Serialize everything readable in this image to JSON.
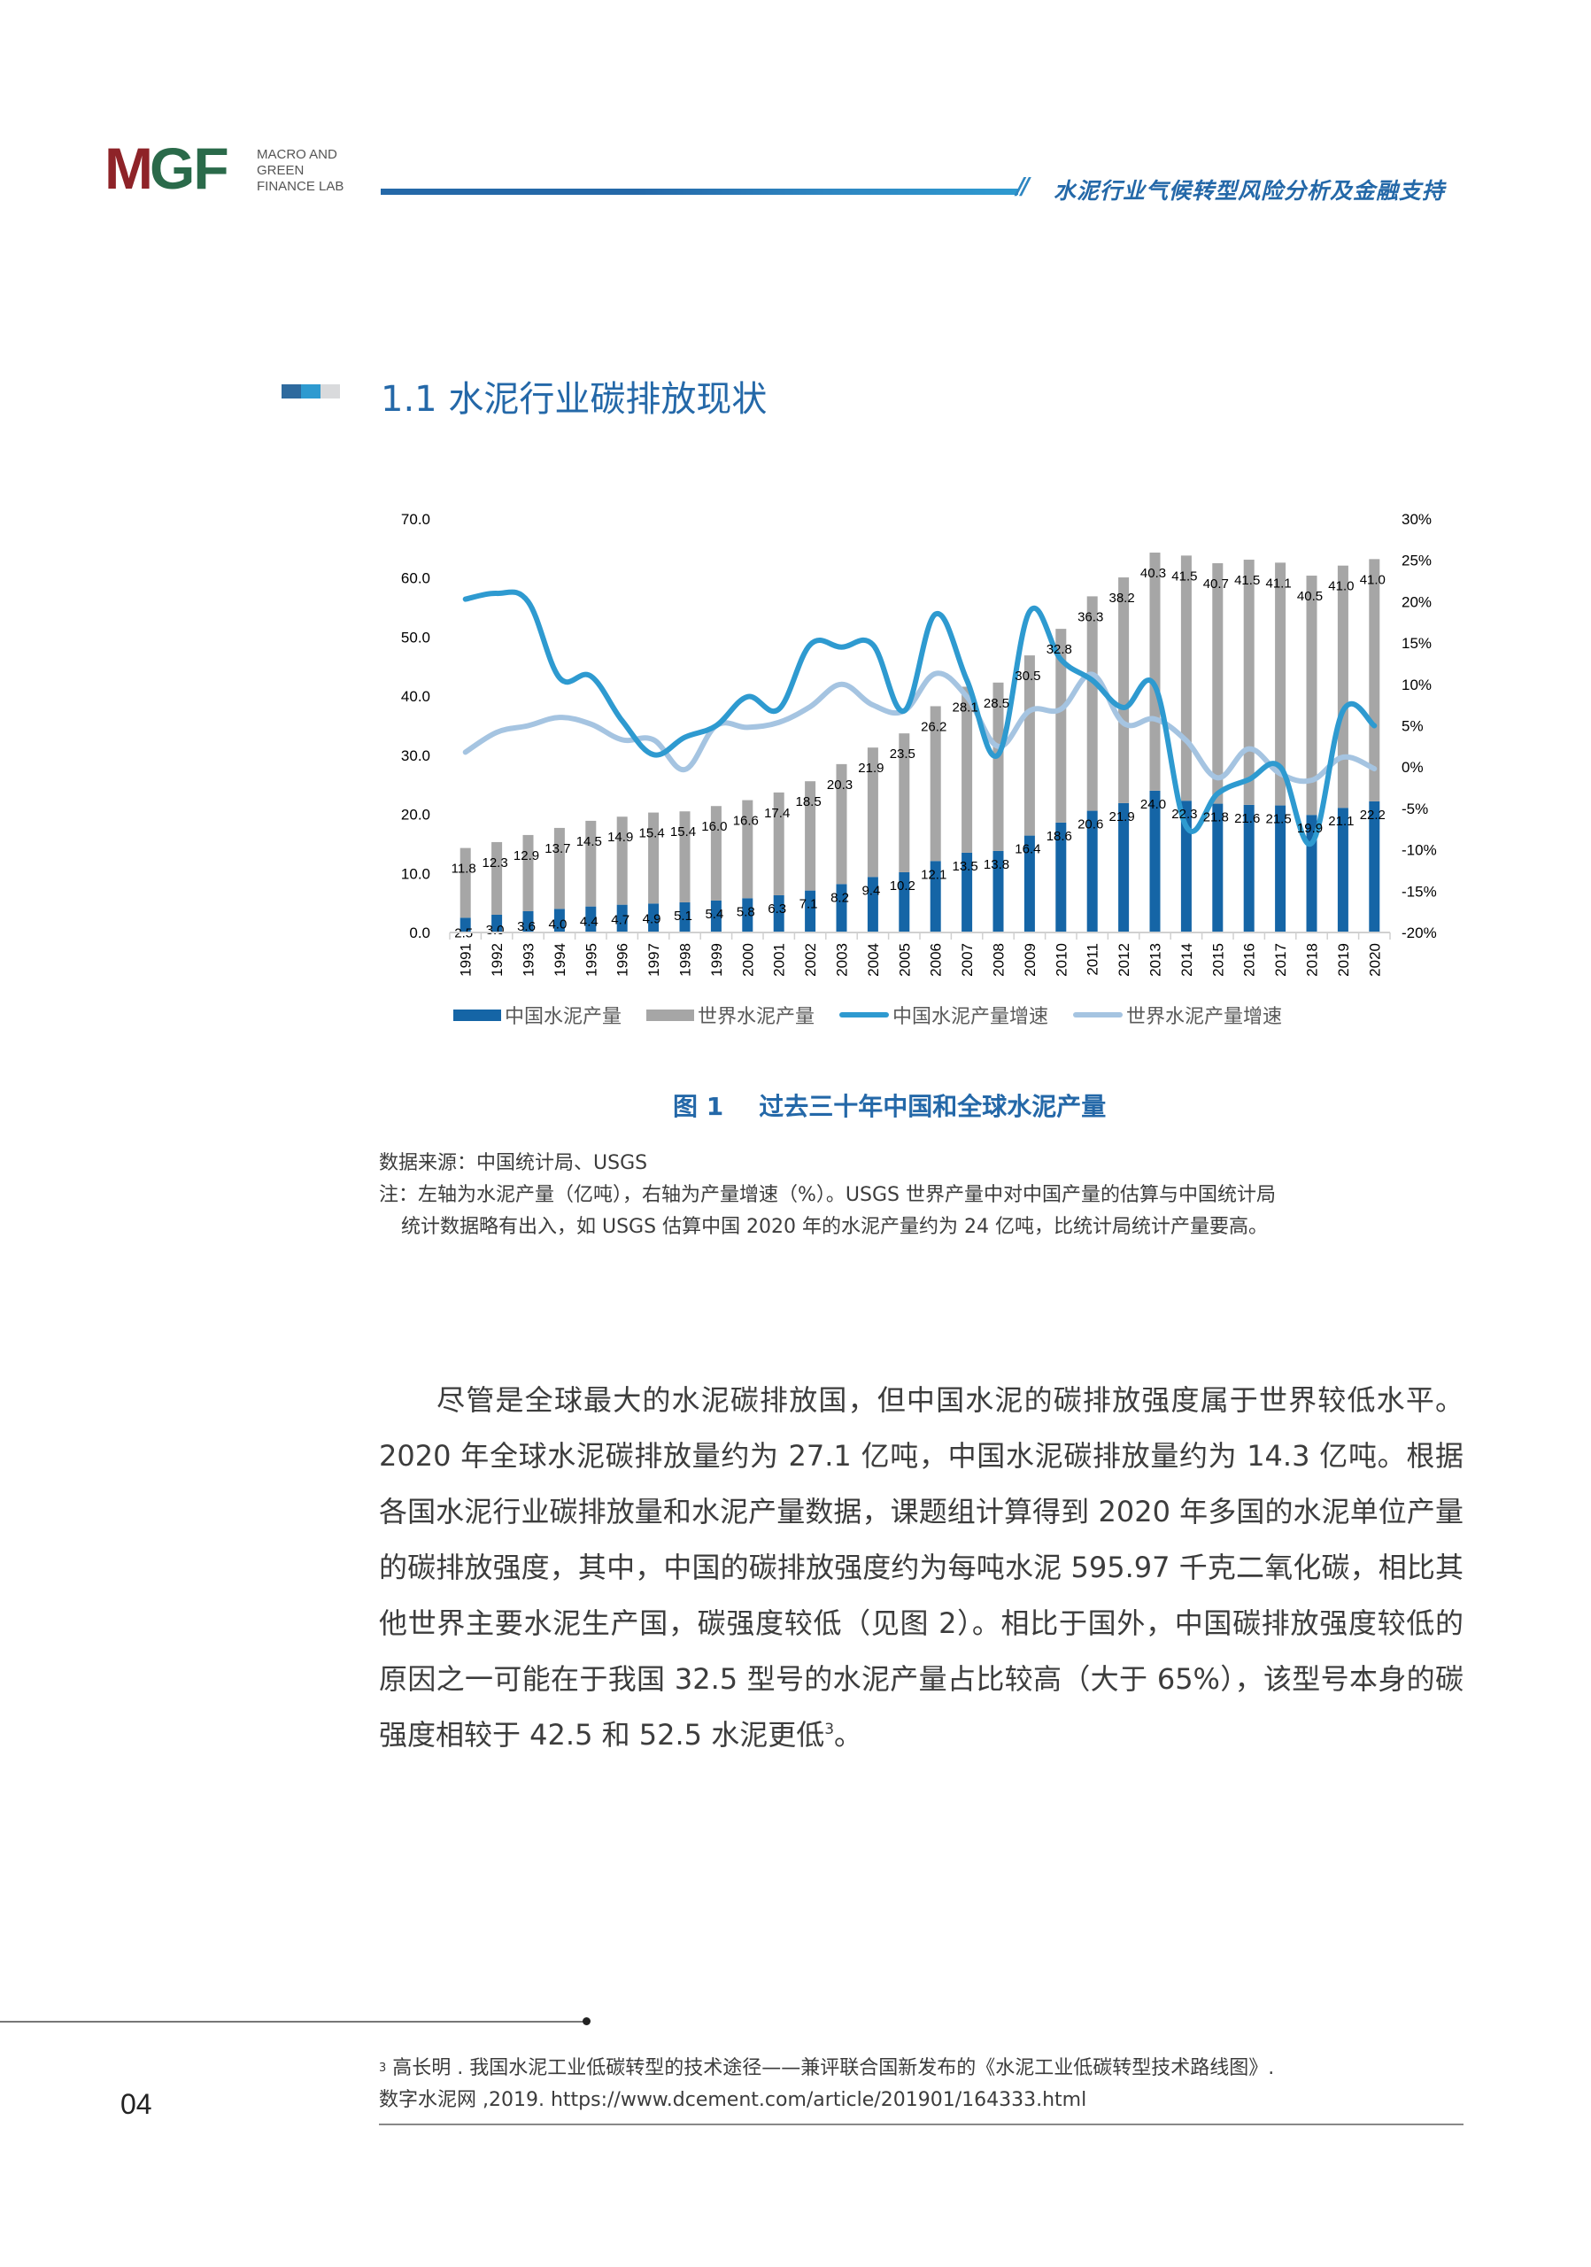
{
  "header": {
    "logo_m": "M",
    "logo_gf": "GF",
    "logo_text": [
      "MACRO AND",
      "GREEN",
      "FINANCE LAB"
    ],
    "slash": "//",
    "title": "水泥行业气候转型风险分析及金融支持",
    "colors": {
      "logo_red": "#8e2328",
      "logo_green": "#2a6a4a",
      "accent_blue": "#2468a8",
      "accent_light": "#2e9ad0"
    }
  },
  "section": {
    "title": "1.1 水泥行业碳排放现状",
    "blocks": [
      "#2e6a9e",
      "#2e9ad0",
      "#d9dadc"
    ]
  },
  "chart_data": {
    "type": "bar+line",
    "title": "过去三十年中国和全球水泥产量",
    "figure_label": "图 1",
    "xlabel": "",
    "ylabel_left": "水泥产量（亿吨）",
    "ylabel_right": "产量增速（%）",
    "ylim_left": [
      0,
      70
    ],
    "ylim_right": [
      -20,
      30
    ],
    "yticks_left": [
      "70.0",
      "60.0",
      "50.0",
      "40.0",
      "30.0",
      "20.0",
      "10.0",
      "0.0"
    ],
    "yticks_right": [
      "30%",
      "25%",
      "20%",
      "15%",
      "10%",
      "5%",
      "0%",
      "-5%",
      "-10%",
      "-15%",
      "-20%"
    ],
    "grid": false,
    "legend_position": "bottom",
    "stacked_bars": true,
    "categories": [
      "1991",
      "1992",
      "1993",
      "1994",
      "1995",
      "1996",
      "1997",
      "1998",
      "1999",
      "2000",
      "2001",
      "2002",
      "2003",
      "2004",
      "2005",
      "2006",
      "2007",
      "2008",
      "2009",
      "2010",
      "2011",
      "2012",
      "2013",
      "2014",
      "2015",
      "2016",
      "2017",
      "2018",
      "2019",
      "2020"
    ],
    "series": [
      {
        "name": "中国水泥产量",
        "type": "bar",
        "axis": "left",
        "color": "#1565a6",
        "values": [
          2.5,
          3.0,
          3.6,
          4.0,
          4.4,
          4.7,
          4.9,
          5.1,
          5.4,
          5.8,
          6.3,
          7.1,
          8.2,
          9.4,
          10.2,
          12.1,
          13.5,
          13.8,
          16.4,
          18.6,
          20.6,
          21.9,
          24.0,
          22.3,
          21.8,
          21.6,
          21.5,
          19.9,
          21.1,
          22.2
        ]
      },
      {
        "name": "世界水泥产量",
        "type": "bar",
        "axis": "left",
        "color": "#a6a6a6",
        "values": [
          11.8,
          12.3,
          12.9,
          13.7,
          14.5,
          14.9,
          15.4,
          15.4,
          16.0,
          16.6,
          17.4,
          18.5,
          20.3,
          21.9,
          23.5,
          26.2,
          28.1,
          28.5,
          30.5,
          32.8,
          36.3,
          38.2,
          40.3,
          41.5,
          40.7,
          41.5,
          41.1,
          40.5,
          41.0,
          41.0
        ]
      },
      {
        "name": "中国水泥产量增速",
        "type": "line",
        "axis": "right",
        "color": "#2e9ad0",
        "values": [
          20.3,
          21.0,
          20.0,
          10.8,
          11.0,
          5.6,
          1.5,
          3.6,
          5.0,
          8.5,
          7.0,
          14.8,
          14.5,
          14.8,
          6.8,
          18.5,
          10.5,
          1.5,
          18.8,
          13.0,
          10.5,
          7.2,
          9.8,
          -7.2,
          -3.2,
          -1.5,
          0.0,
          -9.2,
          6.8,
          5.0
        ]
      },
      {
        "name": "世界水泥产量增速",
        "type": "line",
        "axis": "right",
        "color": "#a5c4e1",
        "values": [
          1.8,
          4.2,
          5.0,
          6.0,
          5.2,
          3.3,
          3.3,
          -0.3,
          5.0,
          4.8,
          5.4,
          7.3,
          10.0,
          7.5,
          6.8,
          11.3,
          8.5,
          2.5,
          6.8,
          7.0,
          11.2,
          5.3,
          5.8,
          3.2,
          -1.3,
          2.2,
          -0.8,
          -1.6,
          1.2,
          -0.2
        ]
      }
    ]
  },
  "figure": {
    "label": "图 1",
    "caption": "过去三十年中国和全球水泥产量",
    "source": "数据来源：中国统计局、USGS",
    "note_line1": "注：左轴为水泥产量（亿吨），右轴为产量增速（%）。USGS 世界产量中对中国产量的估算与中国统计局",
    "note_line2": "统计数据略有出入，如 USGS 估算中国 2020 年的水泥产量约为 24 亿吨，比统计局统计产量要高。"
  },
  "body": {
    "paragraph": "尽管是全球最大的水泥碳排放国，但中国水泥的碳排放强度属于世界较低水平。2020 年全球水泥碳排放量约为 27.1 亿吨，中国水泥碳排放量约为 14.3 亿吨。根据各国水泥行业碳排放量和水泥产量数据，课题组计算得到 2020 年多国的水泥单位产量的碳排放强度，其中，中国的碳排放强度约为每吨水泥 595.97 千克二氧化碳，相比其他世界主要水泥生产国，碳强度较低（见图 2）。相比于国外，中国碳排放强度较低的原因之一可能在于我国 32.5 型号的水泥产量占比较高（大于 65%），该型号本身的碳强度相较于 42.5 和 52.5 水泥更低",
    "footnote_ref": "3",
    "paragraph_end": "。"
  },
  "footnote": {
    "number": "3",
    "line1": "高长明 . 我国水泥工业低碳转型的技术途径——兼评联合国新发布的《水泥工业低碳转型技术路线图》.",
    "line2": "数字水泥网 ,2019. https://www.dcement.com/article/201901/164333.html"
  },
  "page_number": "04"
}
